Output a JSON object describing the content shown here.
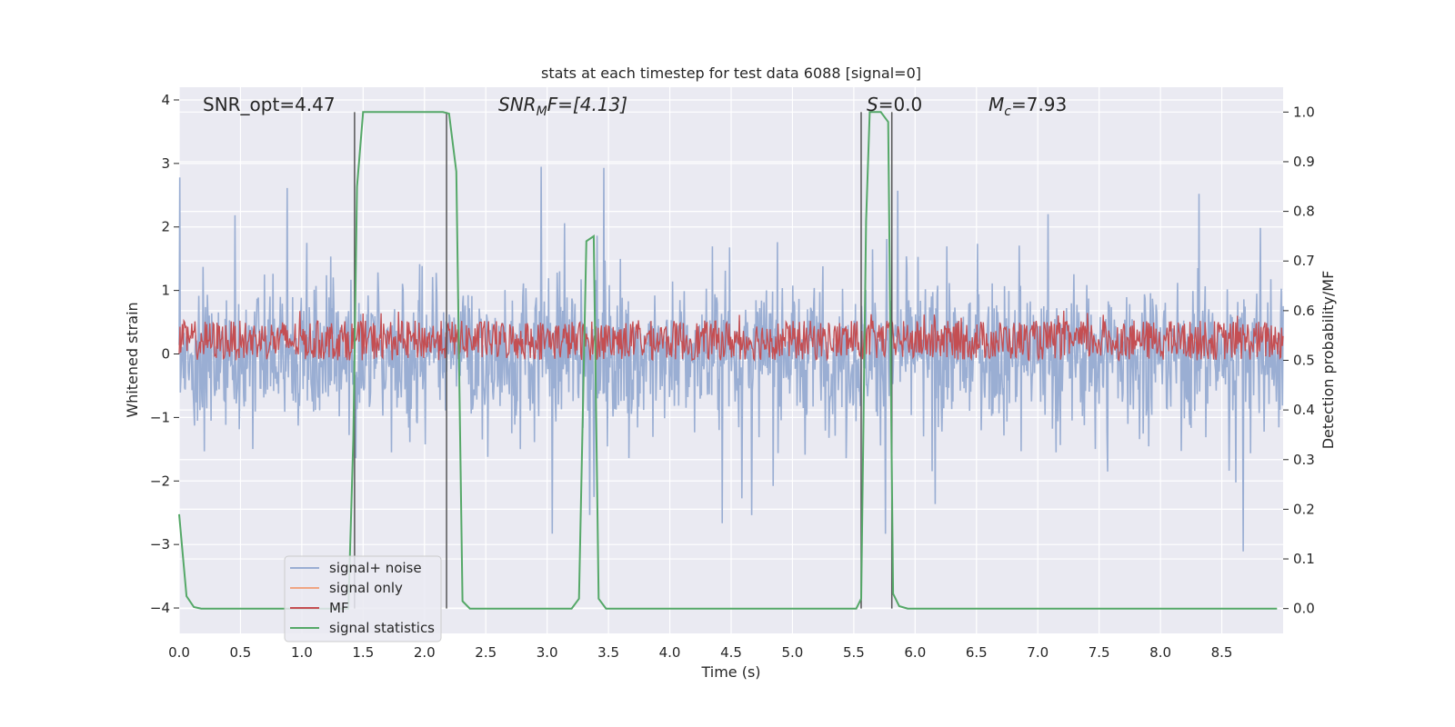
{
  "chart_data": {
    "type": "line",
    "title": "stats at each timestep for test data 6088 [signal=0]",
    "xlabel": "Time (s)",
    "ylabel": "Whitened strain",
    "y2label": "Detection probability/MF",
    "xlim": [
      0,
      9.0
    ],
    "ylim": [
      -4.4,
      4.2
    ],
    "y2lim": [
      -0.05,
      1.05
    ],
    "xticks": [
      "0.0",
      "0.5",
      "1.0",
      "1.5",
      "2.0",
      "2.5",
      "3.0",
      "3.5",
      "4.0",
      "4.5",
      "5.0",
      "5.5",
      "6.0",
      "6.5",
      "7.0",
      "7.5",
      "8.0",
      "8.5"
    ],
    "yticks": [
      "−4",
      "−3",
      "−2",
      "−1",
      "0",
      "1",
      "2",
      "3",
      "4"
    ],
    "y2ticks": [
      "0.0",
      "0.1",
      "0.2",
      "0.3",
      "0.4",
      "0.5",
      "0.6",
      "0.7",
      "0.8",
      "0.9",
      "1.0"
    ],
    "grid": true,
    "legend_position": "lower-left",
    "annotations": {
      "snr_opt": "SNR_opt=4.47",
      "snr_mf_base": "SNR",
      "snr_mf_sub": "M",
      "snr_mf_rest": "F=[4.13]",
      "s_base": "S",
      "s_rest": "=0.0",
      "mc_base": "M",
      "mc_sub": "c",
      "mc_rest": "=7.93"
    },
    "vertical_lines_x": [
      1.43,
      2.18,
      5.56,
      5.81
    ],
    "series": [
      {
        "name": "signal+ noise",
        "color": "#9aaed3",
        "axis": "left",
        "description_level": "noise band approx ±1.5, spikes up to about ±3.8"
      },
      {
        "name": "signal only",
        "color": "#f0a583",
        "axis": "left",
        "values": []
      },
      {
        "name": "MF",
        "color": "#c44e52",
        "axis": "right",
        "band": [
          0.5,
          0.58
        ]
      },
      {
        "name": "signal statistics",
        "color": "#55a868",
        "axis": "right",
        "x": [
          0.0,
          0.06,
          0.12,
          0.18,
          1.38,
          1.42,
          1.45,
          1.5,
          2.0,
          2.15,
          2.2,
          2.26,
          2.31,
          2.37,
          3.2,
          3.26,
          3.32,
          3.38,
          3.42,
          3.48,
          5.52,
          5.56,
          5.6,
          5.63,
          5.72,
          5.78,
          5.82,
          5.87,
          5.94,
          8.95
        ],
        "values": [
          0.19,
          0.025,
          0.003,
          0.0,
          0.0,
          0.34,
          0.85,
          1.0,
          1.0,
          1.0,
          0.997,
          0.88,
          0.015,
          0.0,
          0.0,
          0.02,
          0.74,
          0.75,
          0.02,
          0.0,
          0.0,
          0.02,
          0.78,
          1.0,
          1.0,
          0.98,
          0.03,
          0.005,
          0.0,
          0.0
        ]
      }
    ]
  }
}
